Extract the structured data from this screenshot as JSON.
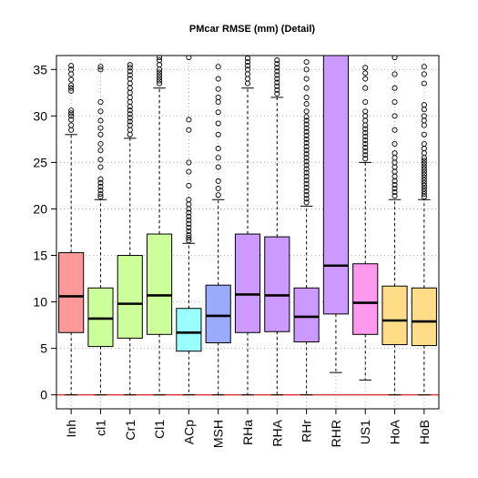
{
  "chart_data": {
    "type": "boxplot",
    "title": "PMcar RMSE (mm) (Detail)",
    "xlabel": "",
    "ylabel": "",
    "ylim": [
      -1.5,
      36.5
    ],
    "yticks": [
      0,
      5,
      10,
      15,
      20,
      25,
      30,
      35
    ],
    "grid": true,
    "reference_line": {
      "y": 0,
      "color": "#e03030"
    },
    "categories": [
      "Inh",
      "cl1",
      "Cr1",
      "Cl1",
      "ACp",
      "MSH",
      "RHa",
      "RHA",
      "RHr",
      "RHR",
      "US1",
      "HoA",
      "HoB"
    ],
    "boxes": [
      {
        "category": "Inh",
        "color": "#ff9999",
        "min": 0,
        "q1": 6.7,
        "median": 10.6,
        "q3": 15.3,
        "whisker_high": 28.0,
        "outliers": [
          28.5,
          29.0,
          29.6,
          30.0,
          30.3,
          30.6,
          32.7,
          33.0,
          33.3,
          33.9,
          34.5,
          35.0,
          35.4
        ]
      },
      {
        "category": "cl1",
        "color": "#ccff99",
        "min": 0,
        "q1": 5.2,
        "median": 8.2,
        "q3": 11.5,
        "whisker_high": 21.0,
        "outliers": [
          21.3,
          21.6,
          22.0,
          22.4,
          22.8,
          23.2,
          24.5,
          25.3,
          26.3,
          27.0,
          28.0,
          28.7,
          29.5,
          30.5,
          31.5,
          35.0,
          35.3
        ]
      },
      {
        "category": "Cr1",
        "color": "#ccff99",
        "min": 0,
        "q1": 6.1,
        "median": 9.8,
        "q3": 15.0,
        "whisker_high": 27.6,
        "outliers": [
          28.0,
          28.5,
          29.0,
          29.4,
          29.8,
          30.2,
          30.6,
          31.0,
          31.5,
          32.0,
          32.5,
          33.0,
          33.5,
          34.0,
          34.4,
          34.8,
          35.2,
          35.5
        ]
      },
      {
        "category": "Cl1",
        "color": "#ccff99",
        "min": 0,
        "q1": 6.5,
        "median": 10.7,
        "q3": 17.3,
        "whisker_high": 33.0,
        "outliers": [
          33.5,
          33.8,
          34.1,
          34.4,
          34.7,
          35.0,
          35.5,
          36.0,
          36.3
        ]
      },
      {
        "category": "ACp",
        "color": "#99ffff",
        "min": 0,
        "q1": 4.7,
        "median": 6.7,
        "q3": 9.3,
        "whisker_high": 16.3,
        "outliers": [
          16.6,
          16.9,
          17.2,
          17.6,
          18.0,
          18.4,
          18.8,
          19.2,
          19.6,
          20.0,
          20.5,
          21.0,
          22.5,
          24.0,
          25.0,
          28.5,
          29.6,
          36.3
        ]
      },
      {
        "category": "MSH",
        "color": "#99aaff",
        "min": 0,
        "q1": 5.6,
        "median": 8.5,
        "q3": 11.8,
        "whisker_high": 21.0,
        "outliers": [
          21.5,
          22.2,
          23.0,
          24.5,
          25.5,
          26.5,
          28.0,
          29.2,
          30.4,
          31.5,
          32.0,
          32.9,
          34.0,
          35.3
        ]
      },
      {
        "category": "RHa",
        "color": "#cc99ff",
        "min": 0,
        "q1": 6.7,
        "median": 10.8,
        "q3": 17.3,
        "whisker_high": 33.0,
        "outliers": [
          33.5,
          34.0,
          34.5,
          35.0,
          35.4,
          35.8,
          36.2
        ]
      },
      {
        "category": "RHA",
        "color": "#cc99ff",
        "min": 0,
        "q1": 6.8,
        "median": 10.7,
        "q3": 17.0,
        "whisker_high": 32.0,
        "outliers": [
          32.4,
          32.8,
          33.2,
          33.6,
          34.0,
          34.4,
          34.8,
          35.2,
          35.6,
          36.0
        ]
      },
      {
        "category": "RHr",
        "color": "#cc99ff",
        "min": 0,
        "q1": 5.7,
        "median": 8.4,
        "q3": 11.5,
        "whisker_high": 20.3,
        "outliers": [
          20.7,
          21.1,
          21.5,
          21.9,
          22.3,
          22.7,
          23.1,
          23.5,
          23.9,
          24.3,
          24.7,
          25.1,
          25.5,
          25.9,
          26.3,
          26.7,
          27.1,
          27.5,
          27.9,
          28.3,
          28.7,
          29.1,
          29.5,
          29.9,
          30.5,
          31.3,
          32.0,
          33.0,
          34.0,
          35.0,
          35.8
        ]
      },
      {
        "category": "RHR",
        "color": "#cc99ff",
        "min": 2.4,
        "q1": 8.7,
        "median": 13.9,
        "q3": 36.5,
        "whisker_high": 36.5,
        "outliers": []
      },
      {
        "category": "US1",
        "color": "#ff99ee",
        "min": 1.6,
        "q1": 6.5,
        "median": 9.9,
        "q3": 14.1,
        "whisker_high": 25.0,
        "outliers": [
          25.4,
          25.8,
          26.2,
          26.6,
          27.0,
          27.4,
          27.8,
          28.2,
          28.6,
          29.0,
          29.5,
          30.0,
          30.5,
          31.5,
          33.0,
          34.0,
          34.6,
          35.2
        ]
      },
      {
        "category": "HoA",
        "color": "#ffdd88",
        "min": 0,
        "q1": 5.4,
        "median": 8.0,
        "q3": 11.7,
        "whisker_high": 21.0,
        "outliers": [
          21.4,
          21.8,
          22.2,
          22.6,
          23.0,
          23.5,
          24.0,
          24.5,
          25.0,
          25.5,
          26.0,
          27.0,
          28.5,
          30.0,
          31.5,
          33.0,
          34.5,
          36.3
        ]
      },
      {
        "category": "HoB",
        "color": "#ffdd88",
        "min": 0,
        "q1": 5.3,
        "median": 7.9,
        "q3": 11.5,
        "whisker_high": 21.0,
        "outliers": [
          21.3,
          21.6,
          21.9,
          22.2,
          22.5,
          22.8,
          23.1,
          23.4,
          23.7,
          24.0,
          24.3,
          24.6,
          24.9,
          25.2,
          25.5,
          26.0,
          26.5,
          27.0,
          28.0,
          29.0,
          29.5,
          30.0,
          30.7,
          31.2,
          33.5,
          34.5,
          35.3
        ]
      }
    ]
  }
}
